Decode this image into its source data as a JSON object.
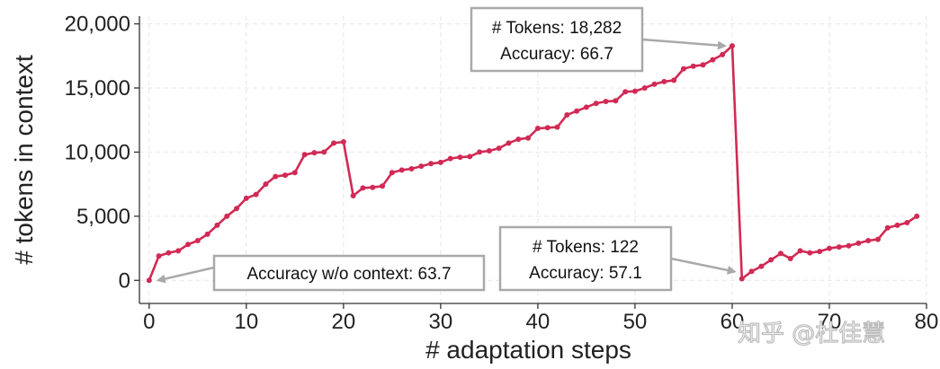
{
  "chart_data": {
    "type": "line",
    "xlabel": "# adaptation steps",
    "ylabel": "# tokens in context",
    "xlim": [
      -1,
      80
    ],
    "ylim": [
      -1800,
      20600
    ],
    "xticks": [
      0,
      10,
      20,
      30,
      40,
      50,
      60,
      70,
      80
    ],
    "xtick_labels": [
      "0",
      "10",
      "20",
      "30",
      "40",
      "50",
      "60",
      "70",
      "80"
    ],
    "yticks": [
      0,
      5000,
      10000,
      15000,
      20000
    ],
    "ytick_labels": [
      "0",
      "5,000",
      "10,000",
      "15,000",
      "20,000"
    ],
    "grid": true,
    "line_color": "#d12a55",
    "x": [
      0,
      1,
      2,
      3,
      4,
      5,
      6,
      7,
      8,
      9,
      10,
      11,
      12,
      13,
      14,
      15,
      16,
      17,
      18,
      19,
      20,
      21,
      22,
      23,
      24,
      25,
      26,
      27,
      28,
      29,
      30,
      31,
      32,
      33,
      34,
      35,
      36,
      37,
      38,
      39,
      40,
      41,
      42,
      43,
      44,
      45,
      46,
      47,
      48,
      49,
      50,
      51,
      52,
      53,
      54,
      55,
      56,
      57,
      58,
      59,
      60,
      61,
      62,
      63,
      64,
      65,
      66,
      67,
      68,
      69,
      70,
      71,
      72,
      73,
      74,
      75,
      76,
      77,
      78,
      79
    ],
    "y": [
      0,
      1900,
      2150,
      2300,
      2800,
      3100,
      3600,
      4300,
      5000,
      5600,
      6400,
      6700,
      7500,
      8100,
      8200,
      8400,
      9800,
      9950,
      10000,
      10700,
      10800,
      6600,
      7200,
      7250,
      7350,
      8400,
      8600,
      8700,
      8900,
      9100,
      9200,
      9500,
      9600,
      9650,
      10000,
      10100,
      10300,
      10700,
      11000,
      11100,
      11850,
      11900,
      11950,
      12900,
      13200,
      13500,
      13800,
      13950,
      14000,
      14700,
      14750,
      15000,
      15300,
      15500,
      15600,
      16500,
      16700,
      16800,
      17200,
      17600,
      18282,
      122,
      700,
      1100,
      1600,
      2100,
      1700,
      2300,
      2150,
      2250,
      2500,
      2600,
      2700,
      2900,
      3100,
      3200,
      4100,
      4300,
      4500,
      5000
    ],
    "annotations": [
      {
        "id": "start",
        "line1": "Accuracy w/o context: 63.7",
        "line2": "",
        "target_x": 0,
        "target_y": 0
      },
      {
        "id": "peak",
        "line1": "# Tokens: 18,282",
        "line2": "Accuracy: 66.7",
        "target_x": 60,
        "target_y": 18282
      },
      {
        "id": "reset",
        "line1": "# Tokens: 122",
        "line2": "Accuracy: 57.1",
        "target_x": 61,
        "target_y": 122
      }
    ],
    "watermark": "知乎 @杜佳慧"
  }
}
